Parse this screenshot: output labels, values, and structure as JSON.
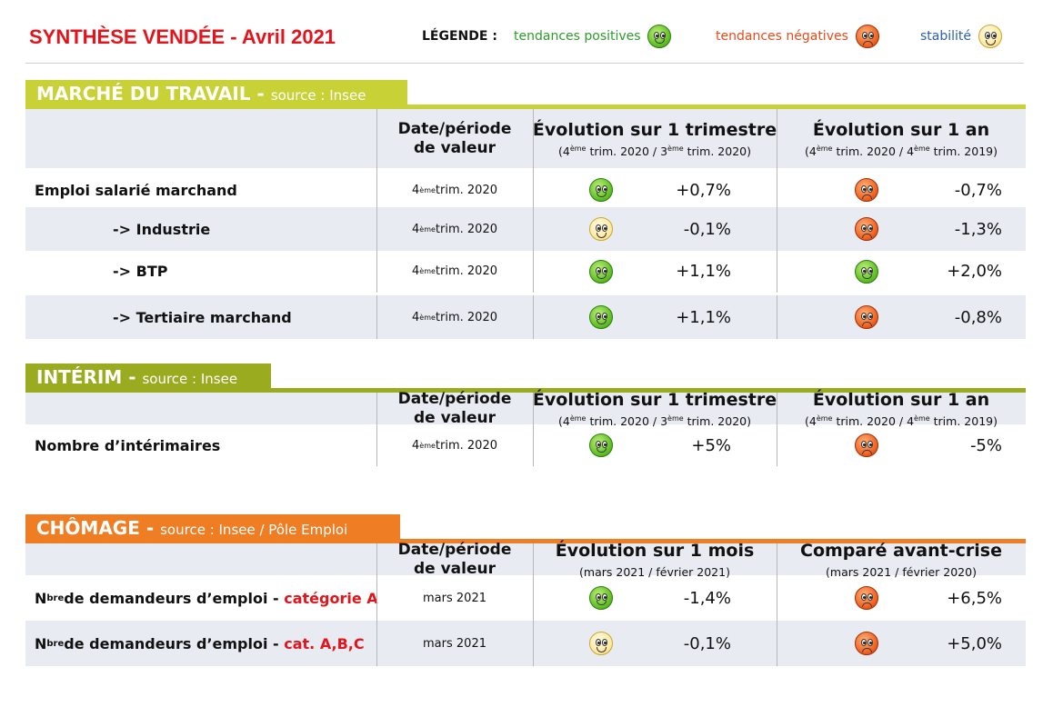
{
  "header": {
    "title": "SYNTHÈSE VENDÉE - Avril 2021",
    "legend_label": "LÉGENDE :",
    "legend_positive": "tendances positives",
    "legend_negative": "tendances négatives",
    "legend_stable": "stabilité"
  },
  "colors": {
    "title_red": "#e3141b",
    "legend_green": "#2e9b2b",
    "legend_red": "#e84c1b",
    "legend_blue": "#2d5fb0",
    "marche_tab": "#c8d135",
    "interim_tab": "#9aab1f",
    "chomage_tab": "#ef7d23",
    "row_shade": "#e9ebf2"
  },
  "icons": {
    "positive": "smiley-happy-icon",
    "negative": "smiley-sad-icon",
    "neutral": "smiley-neutral-icon"
  },
  "sections": [
    {
      "title": "MARCHÉ DU TRAVAIL -",
      "source": "source : Insee",
      "col_date": "Date/période de valeur",
      "col_a": "Évolution sur 1 trimestre",
      "col_a_sub": "(4ème trim. 2020 / 3ème trim. 2020)",
      "col_b": "Évolution sur 1 an",
      "col_b_sub": "(4ème trim. 2020 / 4ème trim. 2019)",
      "rows": [
        {
          "label": "Emploi salarié marchand",
          "label_red": "",
          "date": "4ème trim. 2020",
          "a_trend": "pos",
          "a_value": "+0,7%",
          "b_trend": "neg",
          "b_value": "-0,7%"
        },
        {
          "label": "-> Industrie",
          "label_red": "",
          "date": "4ème trim. 2020",
          "a_trend": "neu",
          "a_value": "-0,1%",
          "b_trend": "neg",
          "b_value": "-1,3%"
        },
        {
          "label": "-> BTP",
          "label_red": "",
          "date": "4ème trim. 2020",
          "a_trend": "pos",
          "a_value": "+1,1%",
          "b_trend": "pos",
          "b_value": "+2,0%"
        },
        {
          "label": "-> Tertiaire marchand",
          "label_red": "",
          "date": "4ème trim. 2020",
          "a_trend": "pos",
          "a_value": "+1,1%",
          "b_trend": "neg",
          "b_value": "-0,8%"
        }
      ]
    },
    {
      "title": "INTÉRIM -",
      "source": "source : Insee",
      "col_date": "Date/période de valeur",
      "col_a": "Évolution sur 1 trimestre",
      "col_a_sub": "(4ème trim. 2020 / 3ème trim. 2020)",
      "col_b": "Évolution sur 1 an",
      "col_b_sub": "(4ème trim. 2020 / 4ème trim. 2019)",
      "rows": [
        {
          "label": "Nombre d’intérimaires",
          "label_red": "",
          "date": "4ème trim. 2020",
          "a_trend": "pos",
          "a_value": "+5%",
          "b_trend": "neg",
          "b_value": "-5%"
        }
      ]
    },
    {
      "title": "CHÔMAGE -",
      "source": "source : Insee / Pôle Emploi",
      "col_date": "Date/période de valeur",
      "col_a": "Évolution sur 1 mois",
      "col_a_sub": "(mars 2021 / février 2021)",
      "col_b": "Comparé avant-crise",
      "col_b_sub": "(mars 2021 / février 2020)",
      "rows": [
        {
          "label": "Nbre de demandeurs d’emploi -",
          "label_red": "catégorie A",
          "date": "mars 2021",
          "a_trend": "pos",
          "a_value": "-1,4%",
          "b_trend": "neg",
          "b_value": "+6,5%"
        },
        {
          "label": "Nbre de demandeurs d’emploi -",
          "label_red": "cat. A,B,C",
          "date": "mars 2021",
          "a_trend": "neu",
          "a_value": "-0,1%",
          "b_trend": "neg",
          "b_value": "+5,0%"
        }
      ]
    }
  ]
}
